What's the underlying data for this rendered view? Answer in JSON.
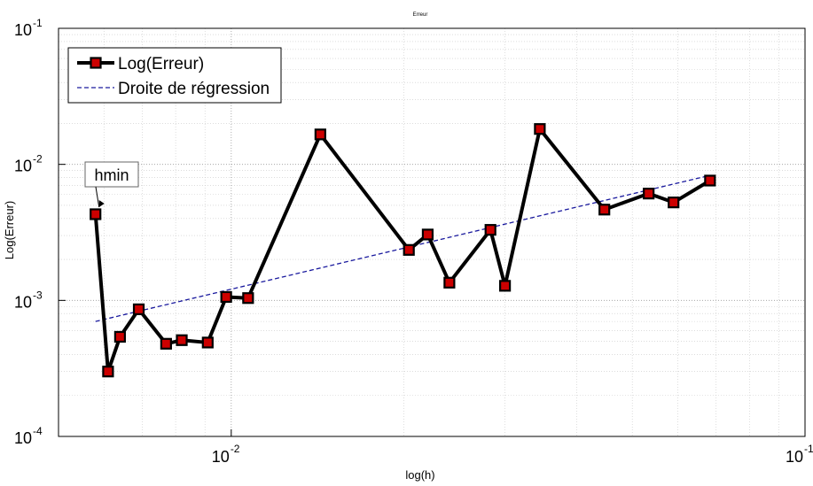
{
  "chart_data": {
    "type": "line",
    "title": "Erreur",
    "xlabel": "log(h)",
    "ylabel": "Log(Erreur)",
    "xscale": "log",
    "yscale": "log",
    "xlim": [
      0.005,
      0.1
    ],
    "ylim": [
      0.0001,
      0.1
    ],
    "x_ticks": [
      {
        "value": 0.01,
        "base": "10",
        "exp": "-2"
      },
      {
        "value": 0.1,
        "base": "10",
        "exp": "-1"
      }
    ],
    "y_ticks": [
      {
        "value": 0.0001,
        "base": "10",
        "exp": "-4"
      },
      {
        "value": 0.001,
        "base": "10",
        "exp": "-3"
      },
      {
        "value": 0.01,
        "base": "10",
        "exp": "-2"
      },
      {
        "value": 0.1,
        "base": "10",
        "exp": "-1"
      }
    ],
    "grid": true,
    "minor_grid": true,
    "legend_position": "top-left",
    "series": [
      {
        "name": "Log(Erreur)",
        "color": "#000000",
        "marker_color": "#cc0000",
        "style": "solid-thick-square-markers",
        "x": [
          0.0058,
          0.0061,
          0.0064,
          0.0069,
          0.0077,
          0.0082,
          0.0091,
          0.0098,
          0.0107,
          0.0143,
          0.0204,
          0.022,
          0.024,
          0.0283,
          0.03,
          0.0345,
          0.0447,
          0.0534,
          0.059,
          0.0683
        ],
        "y": [
          0.0043,
          0.0003,
          0.00054,
          0.00086,
          0.00048,
          0.00051,
          0.00049,
          0.00106,
          0.00104,
          0.0166,
          0.00235,
          0.00305,
          0.00135,
          0.0033,
          0.00128,
          0.0182,
          0.00465,
          0.0061,
          0.00525,
          0.0076
        ]
      },
      {
        "name": "Droite de régression",
        "color": "#1a1a9e",
        "style": "dashed",
        "x": [
          0.0058,
          0.0683
        ],
        "y": [
          0.0007,
          0.0083
        ]
      }
    ],
    "annotations": [
      {
        "text": "hmin",
        "x": 0.0058,
        "y": 0.0043
      }
    ]
  }
}
